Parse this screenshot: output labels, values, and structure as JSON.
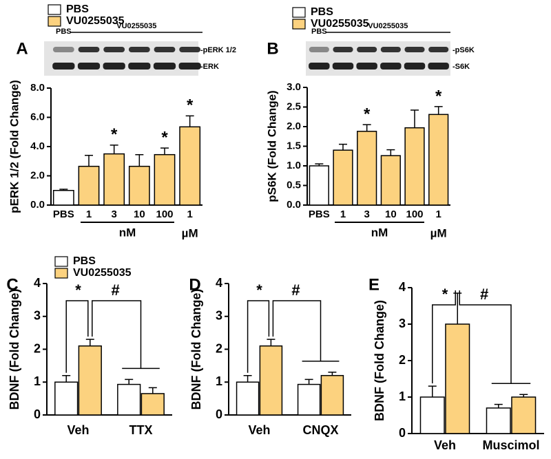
{
  "chart_data": [
    {
      "type": "bar",
      "panel": "A",
      "ylabel": "pERK 1/2 (Fold Change)",
      "categories": [
        "PBS",
        "1",
        "3",
        "10",
        "100",
        "1"
      ],
      "series": [
        {
          "name": "PBS",
          "color": "#ffffff",
          "values": [
            1.0,
            null,
            null,
            null,
            null,
            null
          ],
          "errors": [
            0.08,
            null,
            null,
            null,
            null,
            null
          ]
        },
        {
          "name": "VU0255035",
          "color": "#fcd27f",
          "values": [
            null,
            2.65,
            3.5,
            2.65,
            3.45,
            5.35
          ],
          "errors": [
            null,
            0.75,
            0.6,
            0.8,
            0.45,
            0.75
          ]
        }
      ],
      "significance": [
        null,
        null,
        "*",
        null,
        "*",
        "*"
      ],
      "units": [
        "nM",
        "µM"
      ],
      "blot": {
        "lanes": [
          "PBS",
          "VU0255035"
        ],
        "bands": [
          "-pERK 1/2",
          "-ERK"
        ]
      },
      "ylim": [
        0,
        8
      ],
      "yticks": [
        {
          "value": 0,
          "label": "0.0"
        },
        {
          "value": 2,
          "label": "2.0"
        },
        {
          "value": 4,
          "label": "4.0"
        },
        {
          "value": 6,
          "label": "6.0"
        },
        {
          "value": 8,
          "label": "8.0"
        }
      ],
      "legend": true
    },
    {
      "type": "bar",
      "panel": "B",
      "ylabel": "pS6K (Fold Change)",
      "categories": [
        "PBS",
        "1",
        "3",
        "10",
        "100",
        "1"
      ],
      "series": [
        {
          "name": "PBS",
          "color": "#ffffff",
          "values": [
            1.0,
            null,
            null,
            null,
            null,
            null
          ],
          "errors": [
            0.05,
            null,
            null,
            null,
            null,
            null
          ]
        },
        {
          "name": "VU0255035",
          "color": "#fcd27f",
          "values": [
            null,
            1.4,
            1.88,
            1.26,
            1.97,
            2.31
          ],
          "errors": [
            null,
            0.15,
            0.17,
            0.15,
            0.45,
            0.2
          ]
        }
      ],
      "significance": [
        null,
        null,
        "*",
        null,
        null,
        "*"
      ],
      "units": [
        "nM",
        "µM"
      ],
      "blot": {
        "lanes": [
          "PBS",
          "VU0255035"
        ],
        "bands": [
          "-pS6K",
          "-S6K"
        ]
      },
      "ylim": [
        0,
        3
      ],
      "yticks": [
        {
          "value": 0,
          "label": "0.0"
        },
        {
          "value": 0.5,
          "label": "0.5"
        },
        {
          "value": 1,
          "label": "1.0"
        },
        {
          "value": 1.5,
          "label": "1.5"
        },
        {
          "value": 2,
          "label": "2.0"
        },
        {
          "value": 2.5,
          "label": "2.5"
        },
        {
          "value": 3,
          "label": "3.0"
        }
      ],
      "legend": true
    },
    {
      "type": "bar",
      "panel": "C",
      "ylabel": "BDNF (Fold Change)",
      "categories": [
        "Veh",
        "TTX"
      ],
      "series": [
        {
          "name": "PBS",
          "color": "#ffffff",
          "values": [
            1.0,
            0.93
          ],
          "errors": [
            0.2,
            0.15
          ]
        },
        {
          "name": "VU0255035",
          "color": "#fcd27f",
          "values": [
            2.1,
            0.65
          ],
          "errors": [
            0.2,
            0.18
          ]
        }
      ],
      "comparisons": [
        "*",
        "#"
      ],
      "ylim": [
        0,
        4
      ],
      "yticks": [
        0,
        1,
        2,
        3,
        4
      ],
      "legend": true
    },
    {
      "type": "bar",
      "panel": "D",
      "ylabel": "BDNF (Fold Change)",
      "categories": [
        "Veh",
        "CNQX"
      ],
      "series": [
        {
          "color": "#ffffff",
          "values": [
            1.0,
            0.93
          ],
          "errors": [
            0.2,
            0.15
          ]
        },
        {
          "color": "#fcd27f",
          "values": [
            2.1,
            1.2
          ],
          "errors": [
            0.2,
            0.1
          ]
        }
      ],
      "comparisons": [
        "*",
        "#"
      ],
      "ylim": [
        0,
        4
      ],
      "yticks": [
        0,
        1,
        2,
        3,
        4
      ],
      "legend": false
    },
    {
      "type": "bar",
      "panel": "E",
      "ylabel": "BDNF (Fold Change)",
      "categories": [
        "Veh",
        "Muscimol"
      ],
      "series": [
        {
          "color": "#ffffff",
          "values": [
            1.0,
            0.7
          ],
          "errors": [
            0.3,
            0.1
          ]
        },
        {
          "color": "#fcd27f",
          "values": [
            3.0,
            1.0
          ],
          "errors": [
            0.85,
            0.07
          ]
        }
      ],
      "comparisons": [
        "*",
        "#"
      ],
      "ylim": [
        0,
        4
      ],
      "yticks": [
        0,
        1,
        2,
        3,
        4
      ],
      "legend": false
    }
  ]
}
